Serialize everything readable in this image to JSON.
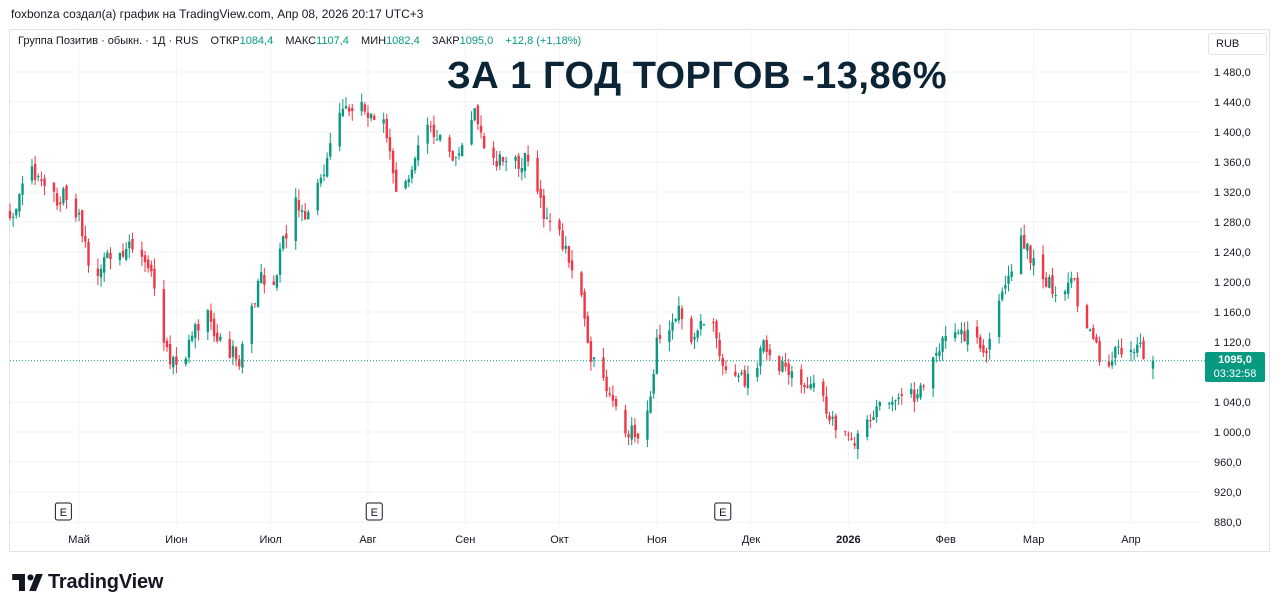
{
  "header": {
    "credit": "foxbonza создал(а) график на TradingView.com, Апр 08, 2026 20:17 UTC+3"
  },
  "legend": {
    "symbol": "Группа Позитив · обыкн. · 1Д · RUS",
    "open_label": "ОТКР",
    "open_value": "1084,4",
    "high_label": "МАКС",
    "high_value": "1107,4",
    "low_label": "МИН",
    "low_value": "1082,4",
    "close_label": "ЗАКР",
    "close_value": "1095,0",
    "change": "+12,8 (+1,18%)"
  },
  "headline": "ЗА 1 ГОД ТОРГОВ -13,86%",
  "currency_button": "RUB",
  "last_price": {
    "value": "1095,0",
    "countdown": "03:32:58"
  },
  "brand": {
    "name": "TradingView"
  },
  "colors": {
    "up": "#089981",
    "down": "#f23645",
    "grid": "#f0f3fa",
    "headline": "#0b2536",
    "axis_text": "#131722"
  },
  "chart_data": {
    "type": "candlestick",
    "y_range": [
      880,
      1490
    ],
    "y_ticks": [
      {
        "value": 1480,
        "label": "1 480,0"
      },
      {
        "value": 1440,
        "label": "1 440,0"
      },
      {
        "value": 1400,
        "label": "1 400,0"
      },
      {
        "value": 1360,
        "label": "1 360,0"
      },
      {
        "value": 1320,
        "label": "1 320,0"
      },
      {
        "value": 1280,
        "label": "1 280,0"
      },
      {
        "value": 1240,
        "label": "1 240,0"
      },
      {
        "value": 1200,
        "label": "1 200,0"
      },
      {
        "value": 1160,
        "label": "1 160,0"
      },
      {
        "value": 1120,
        "label": "1 120,0"
      },
      {
        "value": 1040,
        "label": "1 040,0"
      },
      {
        "value": 1000,
        "label": "1 000,0"
      },
      {
        "value": 960,
        "label": "960,0"
      },
      {
        "value": 920,
        "label": "920,0"
      },
      {
        "value": 880,
        "label": "880,0"
      }
    ],
    "x_ticks": [
      {
        "label": "Май",
        "day": 22,
        "bold": false
      },
      {
        "label": "Июн",
        "day": 53,
        "bold": false
      },
      {
        "label": "Июл",
        "day": 83,
        "bold": false
      },
      {
        "label": "Авг",
        "day": 114,
        "bold": false
      },
      {
        "label": "Сен",
        "day": 145,
        "bold": false
      },
      {
        "label": "Окт",
        "day": 175,
        "bold": false
      },
      {
        "label": "Ноя",
        "day": 206,
        "bold": false
      },
      {
        "label": "Дек",
        "day": 236,
        "bold": false
      },
      {
        "label": "2026",
        "day": 267,
        "bold": true
      },
      {
        "label": "Фев",
        "day": 298,
        "bold": false
      },
      {
        "label": "Мар",
        "day": 326,
        "bold": false
      },
      {
        "label": "Апр",
        "day": 357,
        "bold": false
      }
    ],
    "days_total": 380,
    "last_close": 1095.0,
    "earnings_markers": [
      {
        "day": 17,
        "label": "E"
      },
      {
        "day": 116,
        "label": "E"
      },
      {
        "day": 227,
        "label": "E"
      }
    ],
    "price_path": [
      [
        0,
        1290
      ],
      [
        7,
        1345
      ],
      [
        12,
        1308
      ],
      [
        20,
        1315
      ],
      [
        26,
        1215
      ],
      [
        38,
        1250
      ],
      [
        45,
        1225
      ],
      [
        50,
        1105
      ],
      [
        55,
        1092
      ],
      [
        62,
        1165
      ],
      [
        68,
        1115
      ],
      [
        73,
        1098
      ],
      [
        80,
        1210
      ],
      [
        84,
        1200
      ],
      [
        90,
        1305
      ],
      [
        96,
        1290
      ],
      [
        104,
        1420
      ],
      [
        111,
        1435
      ],
      [
        119,
        1415
      ],
      [
        124,
        1305
      ],
      [
        131,
        1405
      ],
      [
        138,
        1390
      ],
      [
        142,
        1368
      ],
      [
        148,
        1435
      ],
      [
        151,
        1382
      ],
      [
        158,
        1352
      ],
      [
        164,
        1365
      ],
      [
        170,
        1290
      ],
      [
        176,
        1250
      ],
      [
        181,
        1210
      ],
      [
        185,
        1105
      ],
      [
        190,
        1060
      ],
      [
        196,
        1000
      ],
      [
        202,
        990
      ],
      [
        206,
        1120
      ],
      [
        213,
        1165
      ],
      [
        217,
        1120
      ],
      [
        223,
        1170
      ],
      [
        228,
        1075
      ],
      [
        234,
        1070
      ],
      [
        240,
        1110
      ],
      [
        246,
        1085
      ],
      [
        253,
        1065
      ],
      [
        259,
        1040
      ],
      [
        264,
        1000
      ],
      [
        270,
        990
      ],
      [
        276,
        1030
      ],
      [
        283,
        1055
      ],
      [
        289,
        1040
      ],
      [
        294,
        1100
      ],
      [
        300,
        1130
      ],
      [
        306,
        1135
      ],
      [
        310,
        1098
      ],
      [
        316,
        1195
      ],
      [
        322,
        1250
      ],
      [
        327,
        1225
      ],
      [
        332,
        1190
      ],
      [
        338,
        1205
      ],
      [
        343,
        1140
      ],
      [
        348,
        1085
      ],
      [
        354,
        1110
      ],
      [
        360,
        1112
      ],
      [
        364,
        1095
      ]
    ]
  }
}
